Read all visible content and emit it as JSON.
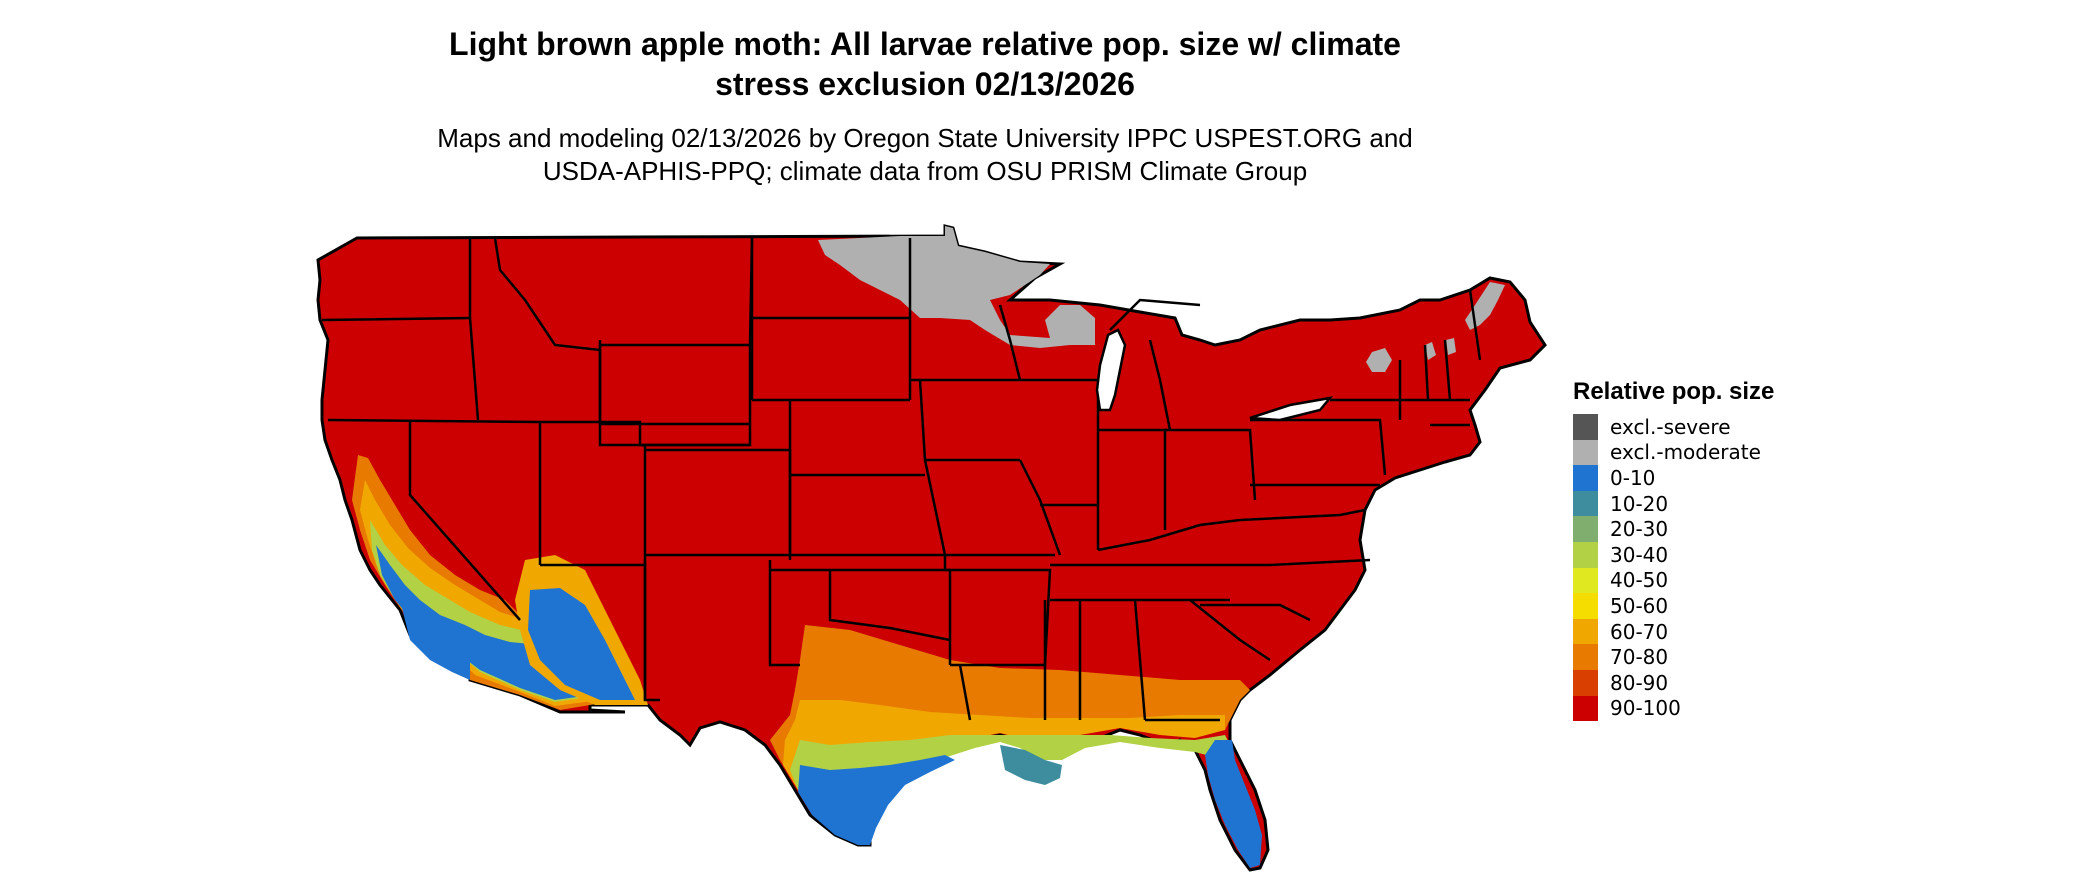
{
  "title_line1": "Light brown apple moth: All larvae relative pop. size w/ climate",
  "title_line2": "stress exclusion 02/13/2026",
  "subtitle_line1": "Maps and modeling 02/13/2026 by Oregon State University IPPC USPEST.ORG and",
  "subtitle_line2": "USDA-APHIS-PPQ; climate data from OSU PRISM Climate Group",
  "legend": {
    "title": "Relative pop. size",
    "items": [
      {
        "label": "excl.-severe",
        "color": "#555555"
      },
      {
        "label": "excl.-moderate",
        "color": "#b0b0b0"
      },
      {
        "label": "0-10",
        "color": "#1f74d2"
      },
      {
        "label": "10-20",
        "color": "#3d8d9e"
      },
      {
        "label": "20-30",
        "color": "#7fae6e"
      },
      {
        "label": "30-40",
        "color": "#b2d145"
      },
      {
        "label": "40-50",
        "color": "#e0e820"
      },
      {
        "label": "50-60",
        "color": "#f5dd00"
      },
      {
        "label": "60-70",
        "color": "#f0a800"
      },
      {
        "label": "70-80",
        "color": "#e87a00"
      },
      {
        "label": "80-90",
        "color": "#d94000"
      },
      {
        "label": "90-100",
        "color": "#cc0000"
      }
    ]
  },
  "colors": {
    "dominant": "#cc0000",
    "excluded_moderate": "#b0b0b0",
    "low": "#1f74d2",
    "border": "#000000"
  }
}
